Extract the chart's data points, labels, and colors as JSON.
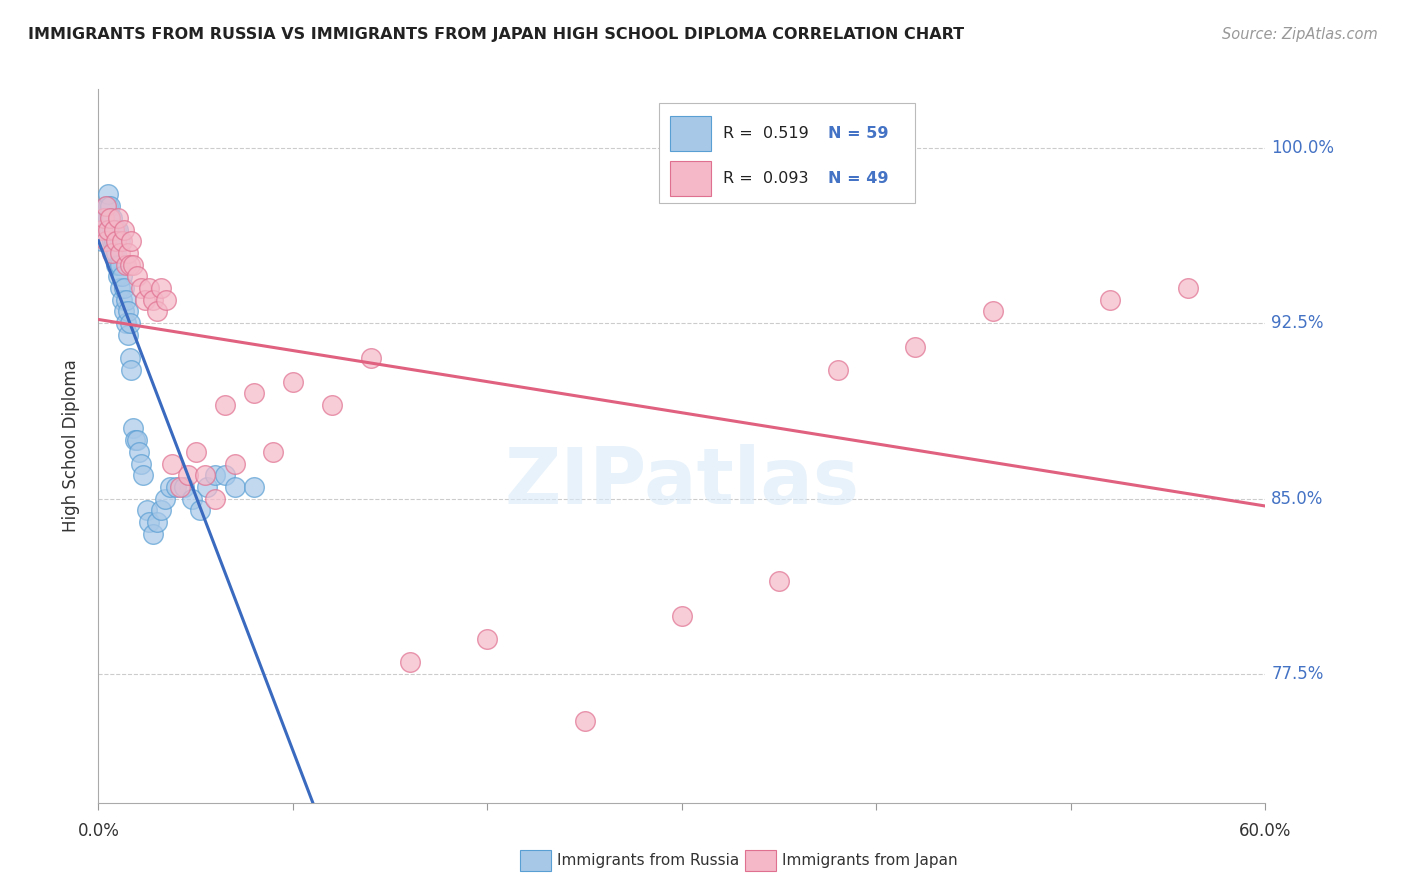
{
  "title": "IMMIGRANTS FROM RUSSIA VS IMMIGRANTS FROM JAPAN HIGH SCHOOL DIPLOMA CORRELATION CHART",
  "source": "Source: ZipAtlas.com",
  "ylabel": "High School Diploma",
  "ytick_labels": [
    "100.0%",
    "92.5%",
    "85.0%",
    "77.5%"
  ],
  "ytick_values": [
    1.0,
    0.925,
    0.85,
    0.775
  ],
  "xlim": [
    0.0,
    0.6
  ],
  "ylim": [
    0.72,
    1.025
  ],
  "xtick_positions": [
    0.0,
    0.1,
    0.2,
    0.3,
    0.4,
    0.5,
    0.6
  ],
  "watermark": "ZIPatlas",
  "legend_R_russia": "R =  0.519",
  "legend_N_russia": "N = 59",
  "legend_R_japan": "R =  0.093",
  "legend_N_japan": "N = 49",
  "color_russia_fill": "#a8c8e8",
  "color_russia_edge": "#5a9fd4",
  "color_japan_fill": "#f4b8c8",
  "color_japan_edge": "#e07090",
  "color_russia_line": "#3a6abf",
  "color_japan_line": "#e06080",
  "russia_x": [
    0.002,
    0.003,
    0.004,
    0.004,
    0.005,
    0.005,
    0.005,
    0.006,
    0.006,
    0.006,
    0.007,
    0.007,
    0.007,
    0.008,
    0.008,
    0.008,
    0.009,
    0.009,
    0.009,
    0.009,
    0.01,
    0.01,
    0.01,
    0.011,
    0.011,
    0.011,
    0.012,
    0.012,
    0.013,
    0.013,
    0.014,
    0.014,
    0.015,
    0.015,
    0.016,
    0.016,
    0.017,
    0.018,
    0.019,
    0.02,
    0.021,
    0.022,
    0.023,
    0.025,
    0.026,
    0.028,
    0.03,
    0.032,
    0.034,
    0.037,
    0.04,
    0.044,
    0.048,
    0.052,
    0.056,
    0.06,
    0.065,
    0.07,
    0.08
  ],
  "russia_y": [
    0.96,
    0.965,
    0.97,
    0.975,
    0.97,
    0.975,
    0.98,
    0.965,
    0.97,
    0.975,
    0.96,
    0.965,
    0.97,
    0.955,
    0.96,
    0.965,
    0.95,
    0.955,
    0.96,
    0.965,
    0.945,
    0.95,
    0.965,
    0.94,
    0.95,
    0.96,
    0.935,
    0.945,
    0.93,
    0.94,
    0.925,
    0.935,
    0.92,
    0.93,
    0.91,
    0.925,
    0.905,
    0.88,
    0.875,
    0.875,
    0.87,
    0.865,
    0.86,
    0.845,
    0.84,
    0.835,
    0.84,
    0.845,
    0.85,
    0.855,
    0.855,
    0.855,
    0.85,
    0.845,
    0.855,
    0.86,
    0.86,
    0.855,
    0.855
  ],
  "japan_x": [
    0.002,
    0.003,
    0.004,
    0.004,
    0.005,
    0.006,
    0.007,
    0.008,
    0.009,
    0.01,
    0.011,
    0.012,
    0.013,
    0.014,
    0.015,
    0.016,
    0.017,
    0.018,
    0.02,
    0.022,
    0.024,
    0.026,
    0.028,
    0.03,
    0.032,
    0.035,
    0.038,
    0.042,
    0.046,
    0.05,
    0.055,
    0.06,
    0.065,
    0.07,
    0.08,
    0.09,
    0.1,
    0.12,
    0.14,
    0.16,
    0.2,
    0.25,
    0.3,
    0.35,
    0.38,
    0.42,
    0.46,
    0.52,
    0.56
  ],
  "japan_y": [
    0.965,
    0.97,
    0.96,
    0.975,
    0.965,
    0.97,
    0.955,
    0.965,
    0.96,
    0.97,
    0.955,
    0.96,
    0.965,
    0.95,
    0.955,
    0.95,
    0.96,
    0.95,
    0.945,
    0.94,
    0.935,
    0.94,
    0.935,
    0.93,
    0.94,
    0.935,
    0.865,
    0.855,
    0.86,
    0.87,
    0.86,
    0.85,
    0.89,
    0.865,
    0.895,
    0.87,
    0.9,
    0.89,
    0.91,
    0.78,
    0.79,
    0.755,
    0.8,
    0.815,
    0.905,
    0.915,
    0.93,
    0.935,
    0.94
  ]
}
